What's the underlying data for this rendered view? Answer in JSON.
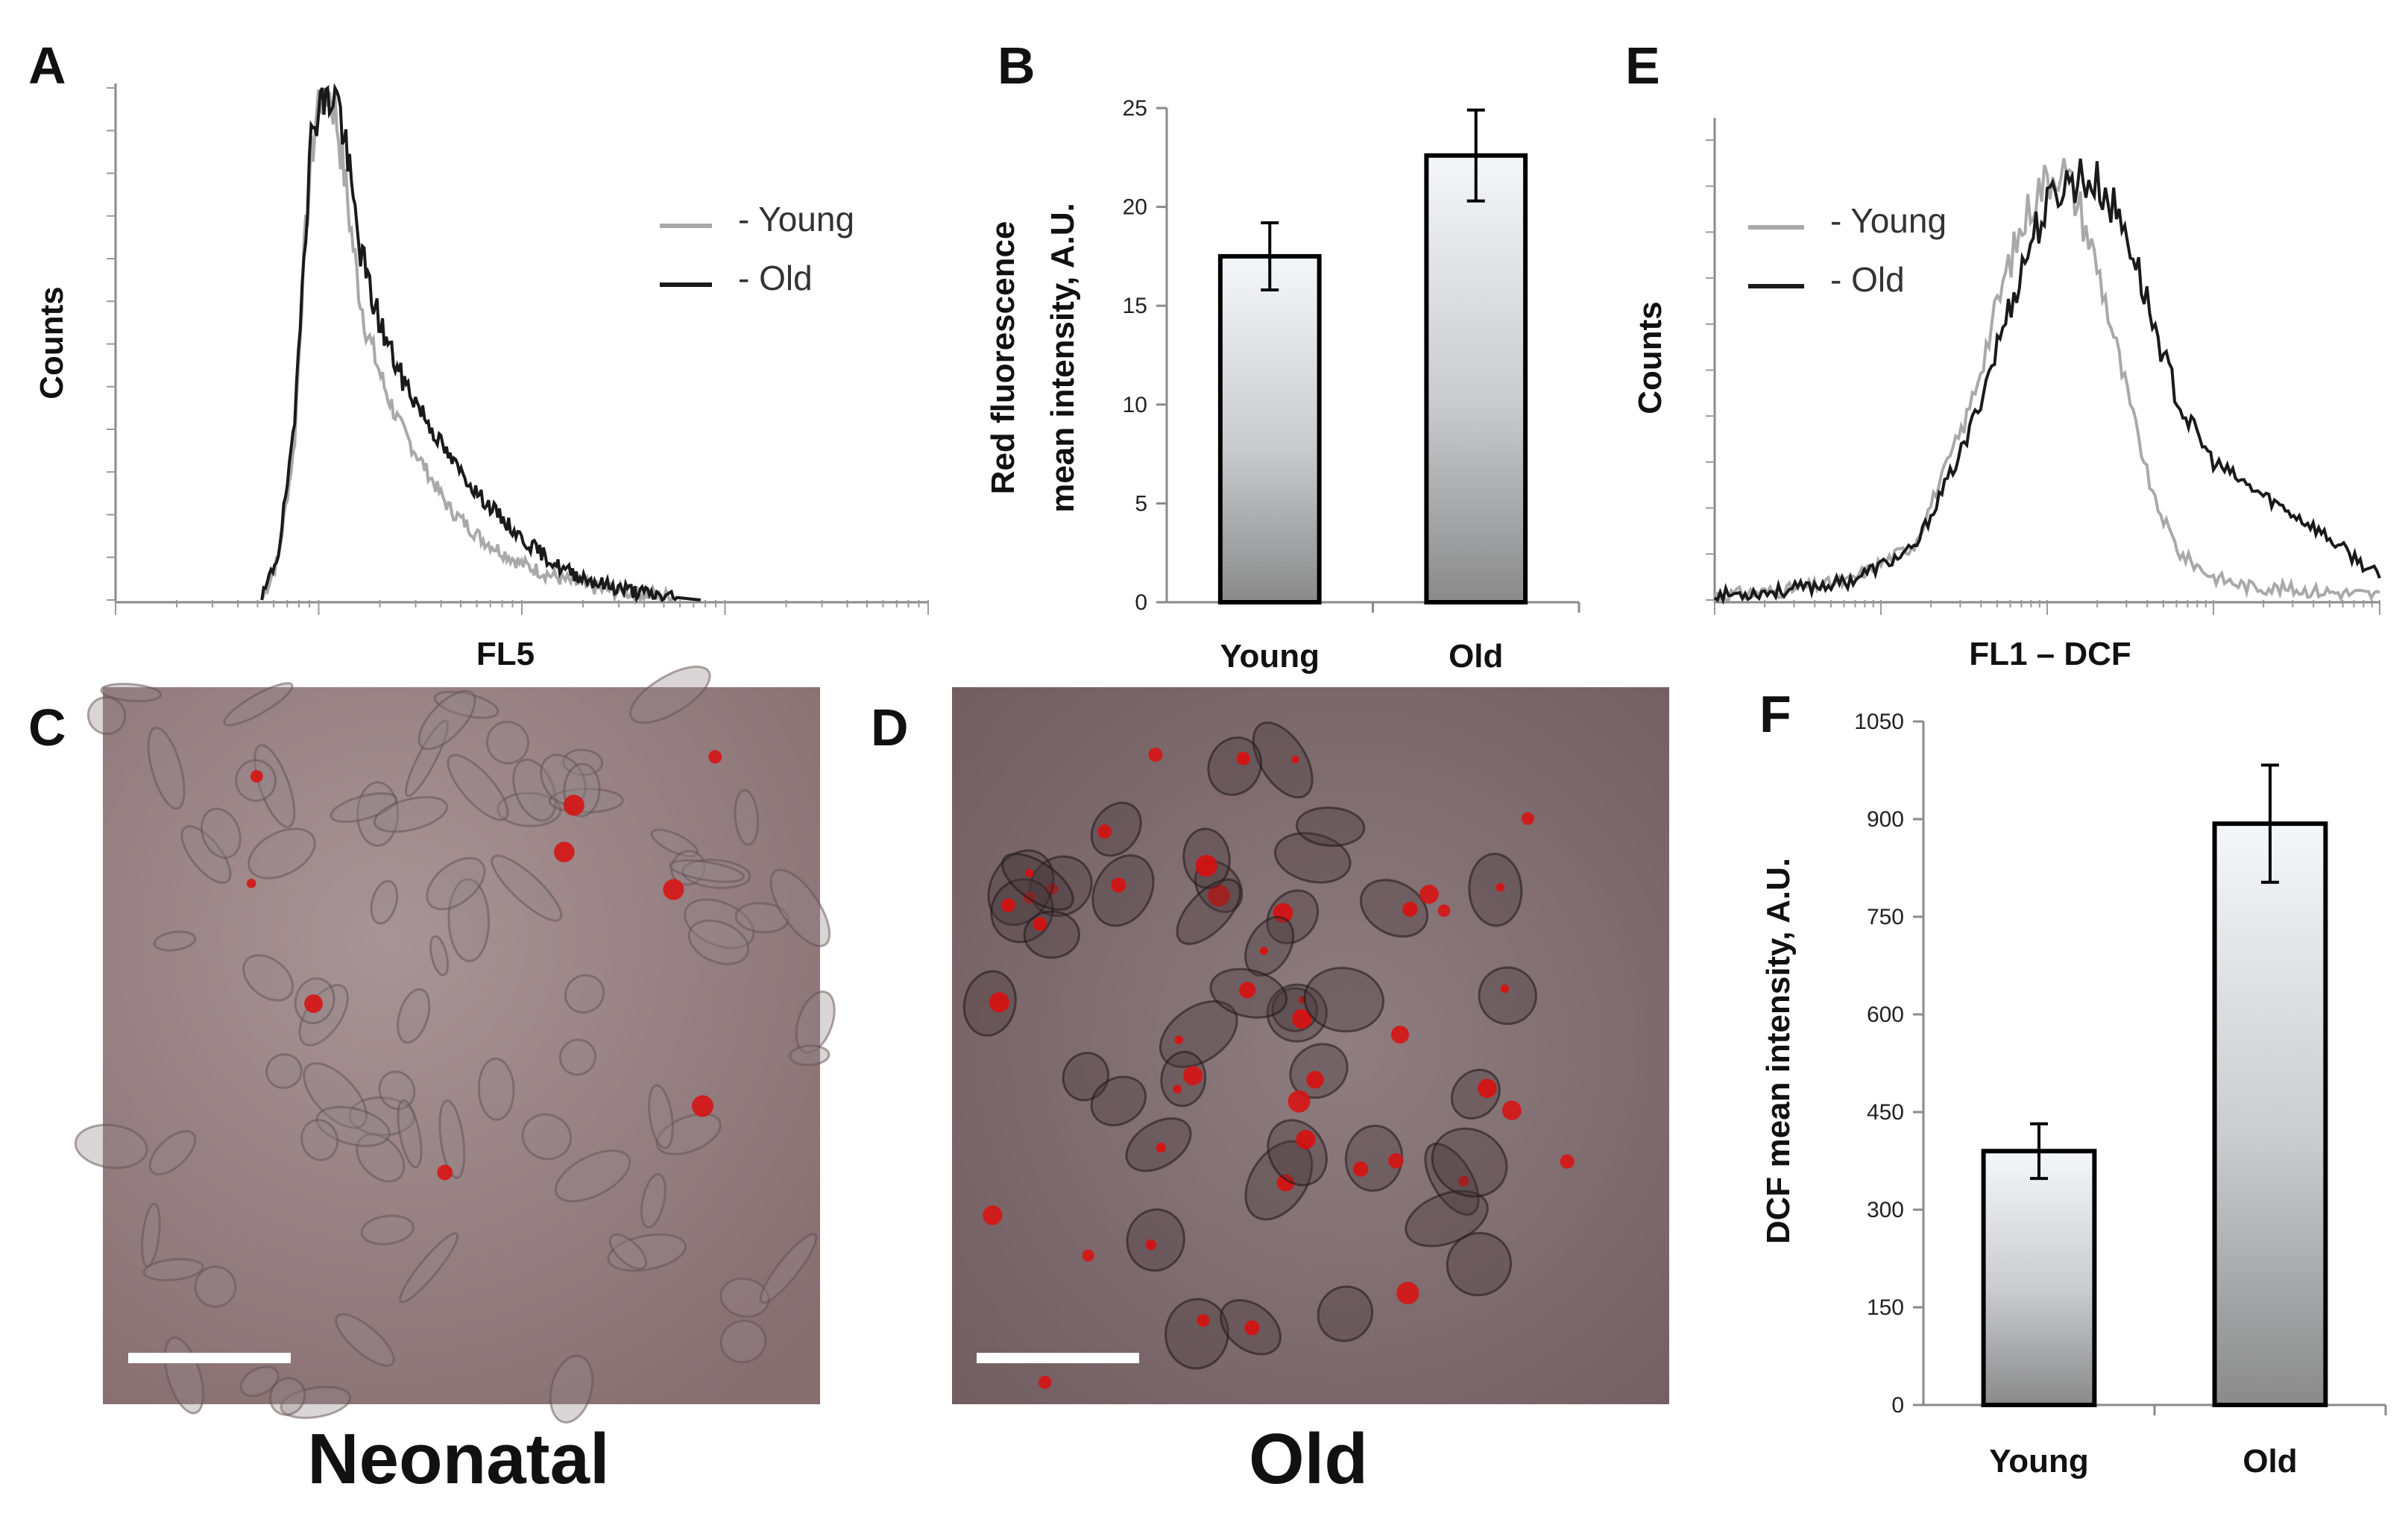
{
  "panels": {
    "A": "A",
    "B": "B",
    "C": "C",
    "D": "D",
    "E": "E",
    "F": "F"
  },
  "captions": {
    "neonatal": "Neonatal",
    "old": "Old"
  },
  "colors": {
    "young": "#a9a9a9",
    "old": "#1a1a1a",
    "bar_top": "#f4f7fa",
    "bar_bottom": "#888888",
    "micro_bg": "#8d7577",
    "red_spot": "#e00000"
  },
  "chart_data": [
    {
      "id": "A",
      "type": "line",
      "title": "",
      "xlabel": "FL5",
      "ylabel": "Counts",
      "x_scale": "log",
      "legend": {
        "position": "top-right",
        "entries": [
          "- Young",
          "- Old"
        ]
      },
      "series": [
        {
          "name": "Young",
          "x": [
            0.18,
            0.2,
            0.22,
            0.23,
            0.24,
            0.25,
            0.26,
            0.27,
            0.28,
            0.29,
            0.3,
            0.31,
            0.33,
            0.35,
            0.38,
            0.41,
            0.45,
            0.5,
            0.55,
            0.6,
            0.66,
            0.72
          ],
          "y": [
            0,
            8,
            30,
            62,
            85,
            98,
            100,
            96,
            85,
            72,
            60,
            52,
            42,
            34,
            26,
            18,
            12,
            7,
            4,
            2,
            1,
            0
          ]
        },
        {
          "name": "Old",
          "x": [
            0.18,
            0.2,
            0.22,
            0.23,
            0.24,
            0.25,
            0.26,
            0.27,
            0.28,
            0.29,
            0.3,
            0.31,
            0.33,
            0.35,
            0.38,
            0.41,
            0.45,
            0.5,
            0.55,
            0.6,
            0.66,
            0.72
          ],
          "y": [
            0,
            9,
            33,
            65,
            88,
            99,
            97,
            100,
            92,
            80,
            70,
            62,
            52,
            44,
            36,
            28,
            20,
            12,
            6,
            3,
            1,
            0
          ]
        }
      ]
    },
    {
      "id": "B",
      "type": "bar",
      "title": "",
      "xlabel": "",
      "ylabel": "Red fluorescence mean intensity, A.U.",
      "ylabel_lines": [
        "Red fluorescence",
        "mean intensity, A.U."
      ],
      "categories": [
        "Young",
        "Old"
      ],
      "values": [
        17.5,
        22.6
      ],
      "errors": [
        1.7,
        2.3
      ],
      "ylim": [
        0,
        25
      ],
      "yticks": [
        0,
        5,
        10,
        15,
        20,
        25
      ]
    },
    {
      "id": "E",
      "type": "line",
      "title": "",
      "xlabel": "FL1 – DCF",
      "ylabel": "Counts",
      "x_scale": "log",
      "legend": {
        "position": "top-left",
        "entries": [
          "- Young",
          "- Old"
        ]
      },
      "series": [
        {
          "name": "Young",
          "x": [
            0,
            0.1,
            0.2,
            0.3,
            0.38,
            0.44,
            0.48,
            0.52,
            0.55,
            0.58,
            0.62,
            0.66,
            0.7,
            0.75,
            0.8,
            0.9,
            1.0
          ],
          "y": [
            1,
            2,
            4,
            12,
            40,
            72,
            88,
            95,
            85,
            70,
            45,
            22,
            10,
            5,
            3,
            2,
            1
          ]
        },
        {
          "name": "Old",
          "x": [
            0,
            0.1,
            0.2,
            0.3,
            0.38,
            0.44,
            0.48,
            0.52,
            0.55,
            0.58,
            0.62,
            0.66,
            0.7,
            0.75,
            0.8,
            0.9,
            1.0
          ],
          "y": [
            1,
            2,
            4,
            11,
            35,
            62,
            80,
            90,
            92,
            90,
            80,
            60,
            42,
            30,
            25,
            16,
            5
          ]
        }
      ]
    },
    {
      "id": "F",
      "type": "bar",
      "title": "",
      "xlabel": "",
      "ylabel": "DCF mean intensity, A.U.",
      "categories": [
        "Young",
        "Old"
      ],
      "values": [
        390,
        893
      ],
      "errors": [
        42,
        90
      ],
      "ylim": [
        0,
        1050
      ],
      "yticks": [
        0,
        150,
        300,
        450,
        600,
        750,
        900,
        1050
      ]
    }
  ]
}
